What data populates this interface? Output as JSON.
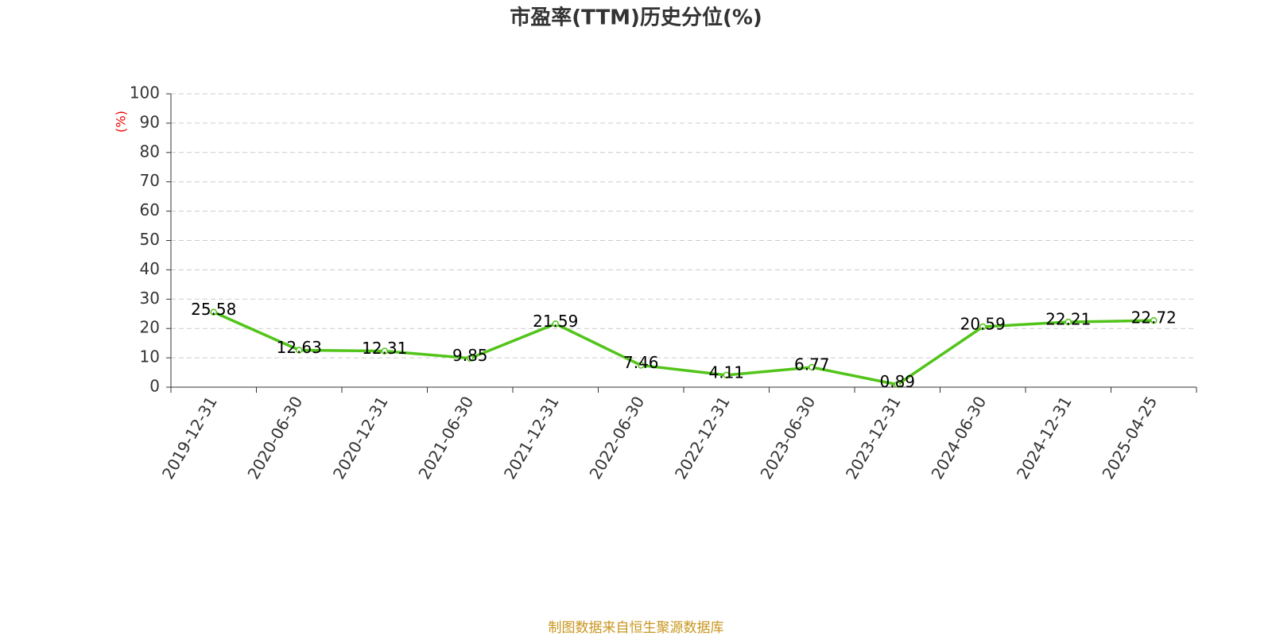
{
  "chart_data": {
    "type": "line",
    "title": "市盈率(TTM)历史分位(%)",
    "y_label": "(%)",
    "categories": [
      "2019-12-31",
      "2020-06-30",
      "2020-12-31",
      "2021-06-30",
      "2021-12-31",
      "2022-06-30",
      "2022-12-31",
      "2023-06-30",
      "2023-12-31",
      "2024-06-30",
      "2024-12-31",
      "2025-04-25"
    ],
    "series": [
      {
        "name": "市盈率(TTM)历史分位",
        "color": "#52c41a",
        "values": [
          25.58,
          12.63,
          12.31,
          9.85,
          21.59,
          7.46,
          4.11,
          6.77,
          0.89,
          20.59,
          22.21,
          22.72
        ]
      }
    ],
    "ylim": [
      0,
      100
    ],
    "yticks": [
      0,
      10,
      20,
      30,
      40,
      50,
      60,
      70,
      80,
      90,
      100
    ],
    "grid": true,
    "source": "制图数据来自恒生聚源数据库"
  }
}
